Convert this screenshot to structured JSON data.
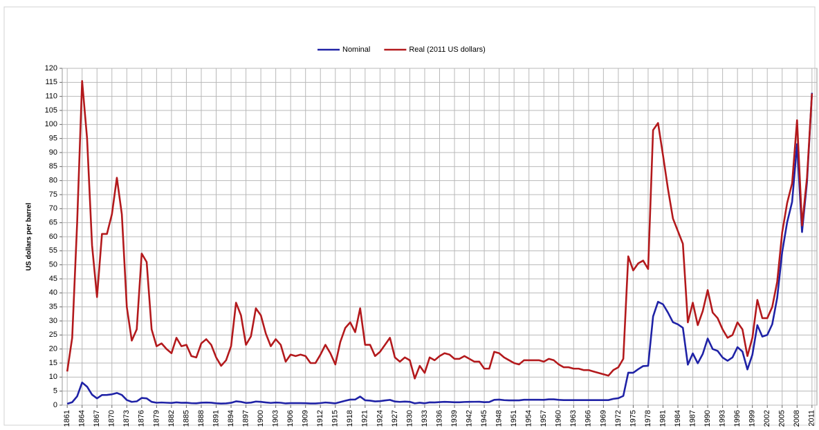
{
  "chart_data": {
    "type": "line",
    "y_label": "US dollars per barrel",
    "legend": "top",
    "grid": true,
    "xlim": [
      1860,
      2012
    ],
    "ylim": [
      0,
      120
    ],
    "yticks": [
      0,
      5,
      10,
      15,
      20,
      25,
      30,
      35,
      40,
      45,
      50,
      55,
      60,
      65,
      70,
      75,
      80,
      85,
      90,
      95,
      100,
      105,
      110,
      115,
      120
    ],
    "xticks": [
      1861,
      1864,
      1867,
      1870,
      1873,
      1876,
      1879,
      1882,
      1885,
      1888,
      1891,
      1894,
      1897,
      1900,
      1903,
      1906,
      1909,
      1912,
      1915,
      1918,
      1921,
      1924,
      1927,
      1930,
      1933,
      1936,
      1939,
      1942,
      1945,
      1948,
      1951,
      1954,
      1957,
      1960,
      1963,
      1966,
      1969,
      1972,
      1975,
      1978,
      1981,
      1984,
      1987,
      1990,
      1993,
      1996,
      1999,
      2002,
      2005,
      2008,
      2011
    ],
    "x": [
      1861,
      1862,
      1863,
      1864,
      1865,
      1866,
      1867,
      1868,
      1869,
      1870,
      1871,
      1872,
      1873,
      1874,
      1875,
      1876,
      1877,
      1878,
      1879,
      1880,
      1881,
      1882,
      1883,
      1884,
      1885,
      1886,
      1887,
      1888,
      1889,
      1890,
      1891,
      1892,
      1893,
      1894,
      1895,
      1896,
      1897,
      1898,
      1899,
      1900,
      1901,
      1902,
      1903,
      1904,
      1905,
      1906,
      1907,
      1908,
      1909,
      1910,
      1911,
      1912,
      1913,
      1914,
      1915,
      1916,
      1917,
      1918,
      1919,
      1920,
      1921,
      1922,
      1923,
      1924,
      1925,
      1926,
      1927,
      1928,
      1929,
      1930,
      1931,
      1932,
      1933,
      1934,
      1935,
      1936,
      1937,
      1938,
      1939,
      1940,
      1941,
      1942,
      1943,
      1944,
      1945,
      1946,
      1947,
      1948,
      1949,
      1950,
      1951,
      1952,
      1953,
      1954,
      1955,
      1956,
      1957,
      1958,
      1959,
      1960,
      1961,
      1962,
      1963,
      1964,
      1965,
      1966,
      1967,
      1968,
      1969,
      1970,
      1971,
      1972,
      1973,
      1974,
      1975,
      1976,
      1977,
      1978,
      1979,
      1980,
      1981,
      1982,
      1983,
      1984,
      1985,
      1986,
      1987,
      1988,
      1989,
      1990,
      1991,
      1992,
      1993,
      1994,
      1995,
      1996,
      1997,
      1998,
      1999,
      2000,
      2001,
      2002,
      2003,
      2004,
      2005,
      2006,
      2007,
      2008,
      2009,
      2010,
      2011
    ],
    "series": [
      {
        "name": "Nominal",
        "color": "#1f22a6",
        "values": [
          0.49,
          1.05,
          3.15,
          8.06,
          6.59,
          3.74,
          2.41,
          3.62,
          3.64,
          3.86,
          4.34,
          3.64,
          1.83,
          1.17,
          1.35,
          2.56,
          2.42,
          1.19,
          0.86,
          0.95,
          0.86,
          0.78,
          1.0,
          0.84,
          0.88,
          0.71,
          0.67,
          0.88,
          0.94,
          0.87,
          0.67,
          0.56,
          0.64,
          0.84,
          1.36,
          1.18,
          0.79,
          0.91,
          1.29,
          1.19,
          0.96,
          0.8,
          0.94,
          0.86,
          0.62,
          0.73,
          0.72,
          0.72,
          0.7,
          0.61,
          0.61,
          0.74,
          0.95,
          0.81,
          0.64,
          1.1,
          1.56,
          1.98,
          2.01,
          3.07,
          1.73,
          1.61,
          1.34,
          1.43,
          1.68,
          1.88,
          1.3,
          1.17,
          1.27,
          1.19,
          0.65,
          0.87,
          0.67,
          1.0,
          0.97,
          1.09,
          1.18,
          1.13,
          1.02,
          1.02,
          1.14,
          1.19,
          1.2,
          1.21,
          1.05,
          1.12,
          1.9,
          1.99,
          1.78,
          1.71,
          1.71,
          1.71,
          1.93,
          1.93,
          1.93,
          1.93,
          1.9,
          2.08,
          2.08,
          1.9,
          1.8,
          1.8,
          1.8,
          1.8,
          1.8,
          1.8,
          1.8,
          1.8,
          1.8,
          1.8,
          2.24,
          2.48,
          3.29,
          11.58,
          11.53,
          12.8,
          13.92,
          14.02,
          31.61,
          36.83,
          35.93,
          32.97,
          29.55,
          28.78,
          27.56,
          14.43,
          18.44,
          14.92,
          18.23,
          23.73,
          20.0,
          19.32,
          16.97,
          15.82,
          17.02,
          20.67,
          19.09,
          12.72,
          17.97,
          28.5,
          24.44,
          25.02,
          28.83,
          38.27,
          54.52,
          65.14,
          72.39,
          93,
          61.67,
          79.5,
          111.26
        ]
      },
      {
        "name": "Real (2011 US dollars)",
        "color": "#b3191c",
        "values": [
          12,
          24,
          65,
          115.5,
          95,
          57,
          38.5,
          61,
          61,
          68,
          81,
          68,
          35,
          23,
          27,
          54,
          51,
          27,
          21,
          22,
          20,
          18.5,
          24,
          21,
          21.5,
          17.5,
          17,
          22,
          23.5,
          21.5,
          17,
          14,
          16,
          21,
          36.5,
          32,
          21.5,
          24.5,
          34.5,
          32,
          25.5,
          21,
          23.5,
          21.5,
          15.5,
          18,
          17.5,
          18,
          17.5,
          15,
          15,
          18,
          21.5,
          18.5,
          14.5,
          22.5,
          27.5,
          29.5,
          26,
          34.5,
          21.5,
          21.5,
          17.5,
          19,
          21.5,
          24,
          17,
          15.5,
          17,
          16,
          9.5,
          14,
          11.5,
          17,
          16,
          17.5,
          18.5,
          18,
          16.5,
          16.5,
          17.5,
          16.5,
          15.5,
          15.5,
          13,
          13,
          19,
          18.5,
          17,
          16,
          15,
          14.5,
          16,
          16,
          16,
          16,
          15.5,
          16.5,
          16,
          14.5,
          13.5,
          13.5,
          13,
          13,
          12.5,
          12.5,
          12,
          11.5,
          11,
          10.5,
          12.5,
          13.5,
          16.5,
          53,
          48,
          50.5,
          51.5,
          48.5,
          98,
          100.5,
          89,
          77,
          66.5,
          62,
          57.5,
          29.5,
          36.5,
          28.5,
          33.5,
          41,
          33,
          31,
          27,
          24,
          25,
          29.5,
          27,
          17.5,
          24,
          37.5,
          31,
          31,
          35,
          44,
          61.5,
          72,
          79,
          101.5,
          64,
          81,
          111
        ]
      }
    ]
  }
}
